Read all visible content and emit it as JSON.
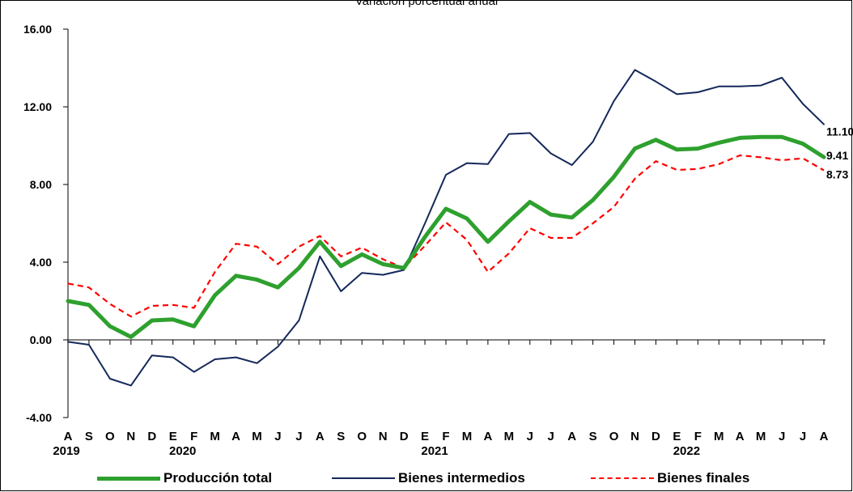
{
  "subtitle": "Variación porcentual anual",
  "chart_data": {
    "type": "line",
    "ylim": [
      -4,
      16
    ],
    "yticks": [
      "16.00",
      "12.00",
      "8.00",
      "4.00",
      "0.00",
      "-4.00"
    ],
    "x_month_labels": [
      "A",
      "S",
      "O",
      "N",
      "D",
      "E",
      "F",
      "M",
      "A",
      "M",
      "J",
      "J",
      "A",
      "S",
      "O",
      "N",
      "D",
      "E",
      "F",
      "M",
      "A",
      "M",
      "J",
      "J",
      "A",
      "S",
      "O",
      "N",
      "D",
      "E",
      "F",
      "M",
      "A",
      "M",
      "J",
      "J",
      "A"
    ],
    "x_year_labels": [
      {
        "label": "2019",
        "at_index": 0
      },
      {
        "label": "2020",
        "at_index": 5
      },
      {
        "label": "2021",
        "at_index": 17
      },
      {
        "label": "2022",
        "at_index": 29
      }
    ],
    "grid": false,
    "legend_position": "bottom",
    "series": [
      {
        "name": "Producción total",
        "color": "#2ea02e",
        "style": "solid-thick",
        "values": [
          2.0,
          1.8,
          0.7,
          0.15,
          1.0,
          1.05,
          0.7,
          2.3,
          3.3,
          3.1,
          2.7,
          3.7,
          5.05,
          3.8,
          4.4,
          3.9,
          3.7,
          5.3,
          6.75,
          6.25,
          5.05,
          6.1,
          7.1,
          6.45,
          6.3,
          7.2,
          8.4,
          9.85,
          10.3,
          9.8,
          9.85,
          10.15,
          10.4,
          10.45,
          10.45,
          10.1,
          9.41
        ],
        "end_label": "9.41"
      },
      {
        "name": "Bienes intermedios",
        "color": "#14285a",
        "style": "solid-thin",
        "values": [
          -0.1,
          -0.25,
          -2.0,
          -2.35,
          -0.8,
          -0.9,
          -1.65,
          -1.0,
          -0.9,
          -1.2,
          -0.35,
          1.0,
          4.3,
          2.5,
          3.45,
          3.35,
          3.6,
          6.0,
          8.5,
          9.1,
          9.05,
          10.6,
          10.65,
          9.6,
          9.0,
          10.2,
          12.3,
          13.9,
          13.3,
          12.65,
          12.75,
          13.05,
          13.05,
          13.1,
          13.5,
          12.15,
          11.1
        ],
        "end_label": "11.10"
      },
      {
        "name": "Bienes finales",
        "color": "#ff0000",
        "style": "dashed",
        "values": [
          2.9,
          2.7,
          1.85,
          1.2,
          1.75,
          1.8,
          1.65,
          3.5,
          4.95,
          4.8,
          3.9,
          4.8,
          5.35,
          4.3,
          4.75,
          4.15,
          3.7,
          4.85,
          6.05,
          5.15,
          3.5,
          4.45,
          5.75,
          5.25,
          5.25,
          6.0,
          6.85,
          8.3,
          9.2,
          8.75,
          8.8,
          9.05,
          9.5,
          9.4,
          9.25,
          9.35,
          8.73
        ],
        "end_label": "8.73"
      }
    ]
  },
  "legend": {
    "total": "Producción total",
    "intermedios": "Bienes intermedios",
    "finales": "Bienes finales"
  }
}
